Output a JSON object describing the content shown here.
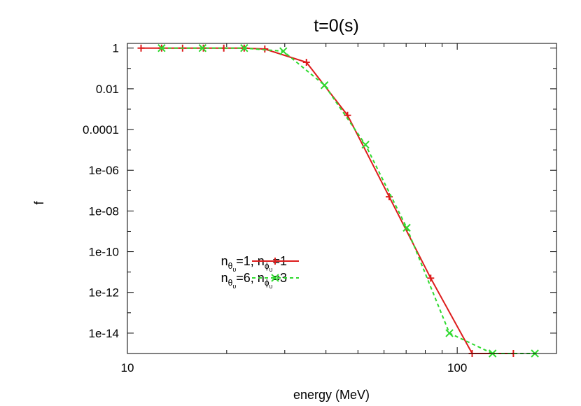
{
  "chart_data": {
    "type": "line",
    "title": "t=0(s)",
    "xlabel": "energy (MeV)",
    "ylabel": "f",
    "x_scale": "log",
    "y_scale": "log",
    "xlim": [
      10,
      200
    ],
    "ylim": [
      1e-15,
      2
    ],
    "grid": false,
    "legend_position": "bottom-left",
    "x_ticks": [
      {
        "value": 10,
        "label": "10"
      },
      {
        "value": 100,
        "label": "100"
      }
    ],
    "y_ticks": [
      {
        "value": 1,
        "label": "1"
      },
      {
        "value": 0.01,
        "label": "0.01"
      },
      {
        "value": 0.0001,
        "label": "0.0001"
      },
      {
        "value": 1e-06,
        "label": "1e-06"
      },
      {
        "value": 1e-08,
        "label": "1e-08"
      },
      {
        "value": 1e-10,
        "label": "1e-10"
      },
      {
        "value": 1e-12,
        "label": "1e-12"
      },
      {
        "value": 1e-14,
        "label": "1e-14"
      }
    ],
    "series": [
      {
        "legend": {
          "p1": "n",
          "s1": "θ",
          "ss1": "υ",
          "m1": "=1, ",
          "p2": "n",
          "s2": "ϕ",
          "ss2": "υ",
          "m2": "=1"
        },
        "color": "#dd1c1c",
        "dashed": false,
        "marker": "plus",
        "x": [
          11.0,
          12.7,
          14.7,
          17.0,
          19.6,
          22.6,
          26.1,
          34.9,
          46.5,
          62.2,
          83.1,
          111.0,
          148.0
        ],
        "y": [
          1.0,
          1.0,
          1.0,
          1.0,
          1.0,
          1.0,
          0.9,
          0.2,
          0.0005,
          5e-08,
          5e-12,
          1e-15,
          1e-15
        ]
      },
      {
        "legend": {
          "p1": "n",
          "s1": "θ",
          "ss1": "υ",
          "m1": "=6, ",
          "p2": "n",
          "s2": "ϕ",
          "ss2": "υ",
          "m2": "=3"
        },
        "color": "#2ed92e",
        "dashed": true,
        "marker": "x",
        "x": [
          12.7,
          16.9,
          22.6,
          29.7,
          39.6,
          52.7,
          70.3,
          94.7,
          128.0,
          172.0
        ],
        "y": [
          1.0,
          1.0,
          1.0,
          0.7,
          0.015,
          1.8e-05,
          1.5e-09,
          1e-14,
          1e-15,
          1e-15
        ]
      }
    ]
  }
}
